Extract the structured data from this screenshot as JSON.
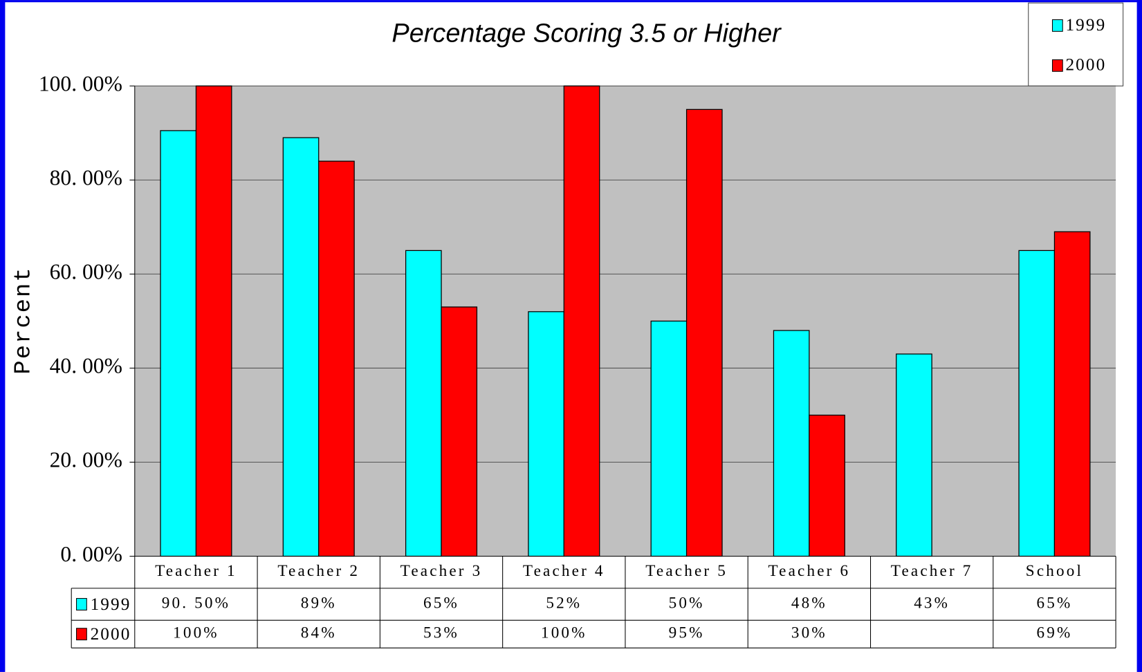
{
  "chart_data": {
    "type": "bar",
    "title": "Percentage Scoring 3.5 or Higher",
    "y_label": "Percent",
    "categories": [
      "Teacher 1",
      "Teacher 2",
      "Teacher 3",
      "Teacher 4",
      "Teacher 5",
      "Teacher 6",
      "Teacher 7",
      "School"
    ],
    "series": [
      {
        "name": "1999",
        "color": "#00ffff",
        "values": [
          90.5,
          89,
          65,
          52,
          50,
          48,
          43,
          65
        ],
        "value_labels": [
          "90. 50%",
          "89%",
          "65%",
          "52%",
          "50%",
          "48%",
          "43%",
          "65%"
        ]
      },
      {
        "name": "2000",
        "color": "#ff0000",
        "values": [
          100,
          84,
          53,
          100,
          95,
          30,
          null,
          69
        ],
        "value_labels": [
          "100%",
          "84%",
          "53%",
          "100%",
          "95%",
          "30%",
          null,
          "69%"
        ]
      }
    ],
    "ylim": [
      0,
      100
    ],
    "yticks": [
      {
        "value": 0,
        "label": "0. 00%"
      },
      {
        "value": 20,
        "label": "20. 00%"
      },
      {
        "value": 40,
        "label": "40. 00%"
      },
      {
        "value": 60,
        "label": "60. 00%"
      },
      {
        "value": 80,
        "label": "80. 00%"
      },
      {
        "value": 100,
        "label": "100. 00%"
      }
    ],
    "grid": true,
    "legend": "upper right"
  }
}
